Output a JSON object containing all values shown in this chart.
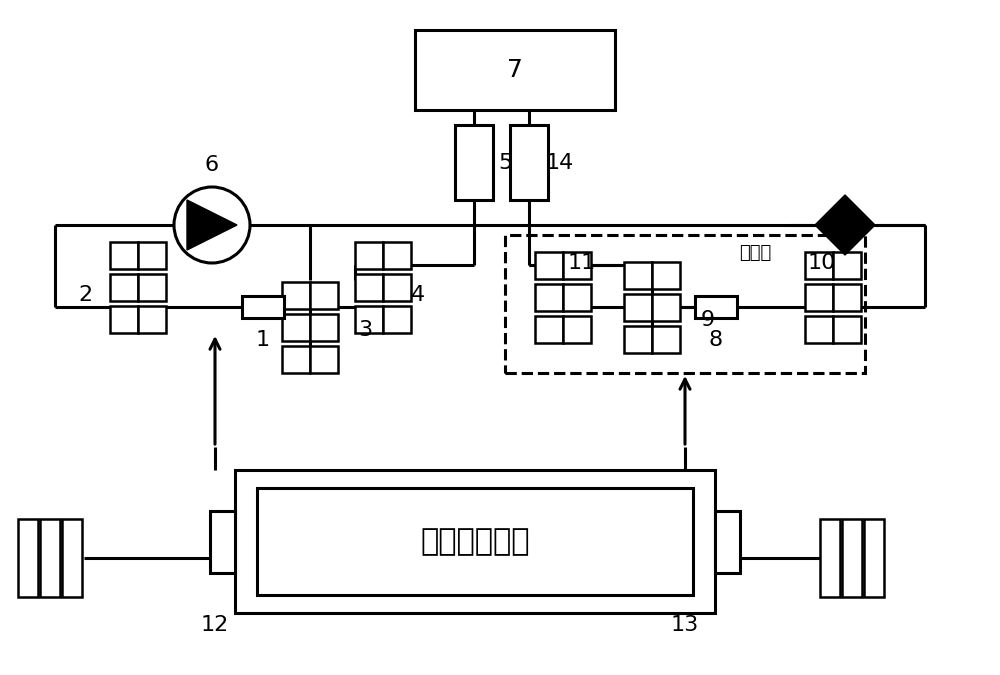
{
  "bg": "#ffffff",
  "lc": "#000000",
  "lw": 2.2,
  "lw_t": 1.8,
  "fw": 10.0,
  "fh": 6.75,
  "dpi": 100,
  "clamp_text": "夹持器模拟室",
  "yiti_text": "一体式",
  "fs_num": 16,
  "fs_clamp": 22,
  "fs_yiti": 13
}
